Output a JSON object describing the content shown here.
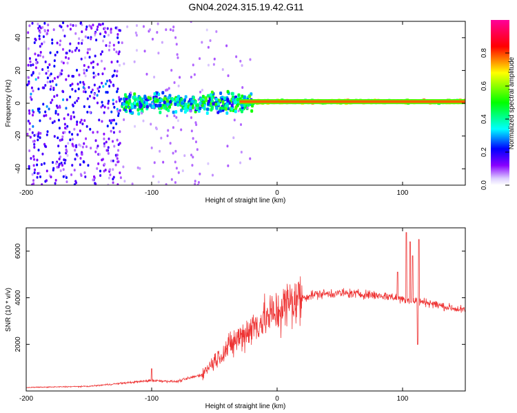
{
  "title": "GN04.2024.315.19.42.G11",
  "chart_data": [
    {
      "type": "heatmap",
      "name": "spectrogram",
      "xlabel": "Height of straight line (km)",
      "ylabel": "Frequency (Hz)",
      "xlim": [
        -200,
        150
      ],
      "ylim": [
        -50,
        50
      ],
      "x_ticks": [
        -200,
        -100,
        0,
        100
      ],
      "y_ticks": [
        -40,
        -20,
        0,
        20,
        40
      ],
      "colorbar": {
        "label": "Normalized spectral amplitude",
        "range": [
          0,
          1
        ],
        "ticks": [
          0.0,
          0.2,
          0.4,
          0.6,
          0.8
        ]
      },
      "features": [
        {
          "x_range": [
            -200,
            -125
          ],
          "freq_spread": 50,
          "amplitude": 0.15,
          "note": "broad noise"
        },
        {
          "x_range": [
            -125,
            -20
          ],
          "freq_spread": 8,
          "amplitude": 0.35,
          "note": "central band"
        },
        {
          "x_range": [
            -20,
            150
          ],
          "freq": 1,
          "amplitude": 0.8,
          "note": "narrow tone"
        }
      ]
    },
    {
      "type": "line",
      "name": "snr",
      "xlabel": "Height of straight line (km)",
      "ylabel": "SNR (10 * v/v)",
      "xlim": [
        -200,
        150
      ],
      "ylim": [
        0,
        7000
      ],
      "x_ticks": [
        -200,
        -100,
        0,
        100
      ],
      "y_ticks": [
        2000,
        4000,
        6000
      ],
      "series_color": "#ee3333",
      "envelope": [
        [
          -200,
          150
        ],
        [
          -150,
          200
        ],
        [
          -120,
          350
        ],
        [
          -100,
          450
        ],
        [
          -80,
          400
        ],
        [
          -60,
          700
        ],
        [
          -50,
          1300
        ],
        [
          -40,
          1800
        ],
        [
          -30,
          2300
        ],
        [
          -20,
          2700
        ],
        [
          -10,
          3100
        ],
        [
          0,
          3400
        ],
        [
          10,
          3800
        ],
        [
          20,
          4000
        ],
        [
          30,
          4150
        ],
        [
          50,
          4200
        ],
        [
          70,
          4150
        ],
        [
          90,
          4050
        ],
        [
          100,
          3950
        ],
        [
          110,
          3850
        ],
        [
          120,
          3800
        ],
        [
          135,
          3600
        ],
        [
          150,
          3450
        ]
      ],
      "spikes": [
        [
          -100,
          950
        ],
        [
          96,
          5100
        ],
        [
          103,
          6800
        ],
        [
          106,
          6400
        ],
        [
          108,
          5800
        ],
        [
          113,
          6500
        ],
        [
          112,
          2000
        ]
      ]
    }
  ]
}
